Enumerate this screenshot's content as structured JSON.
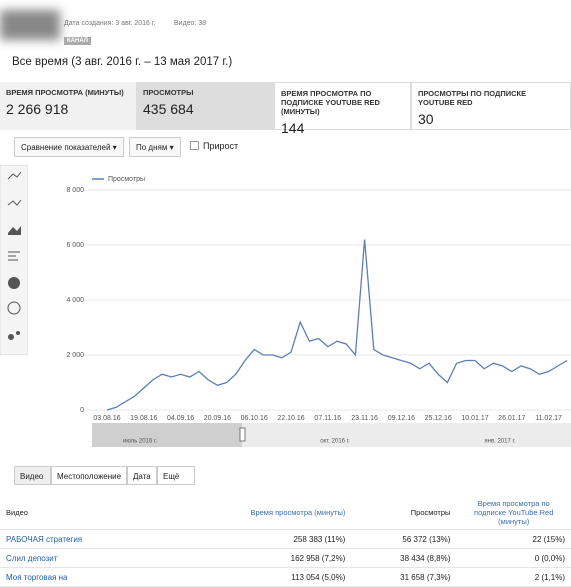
{
  "header": {
    "created": "Дата создания: 3 авг. 2016 г.",
    "videos": "Видео: 38",
    "badge": "КАНАЛ",
    "period": "Все время (3 авг. 2016 г. – 13 мая 2017 г.)"
  },
  "metrics": [
    {
      "label": "ВРЕМЯ ПРОСМОТРА (МИНУТЫ)",
      "value": "2 266 918"
    },
    {
      "label": "ПРОСМОТРЫ",
      "value": "435 684"
    },
    {
      "label": "ВРЕМЯ ПРОСМОТРА ПО ПОДПИСКЕ YOUTUBE RED (МИНУТЫ)",
      "value": "144"
    },
    {
      "label": "ПРОСМОТРЫ ПО ПОДПИСКЕ YOUTUBE RED",
      "value": "30"
    }
  ],
  "controls": {
    "compare": "Сравнение показателей",
    "period": "По дням",
    "growth": "Прирост"
  },
  "chart_data": {
    "type": "line",
    "ylim": [
      0,
      8000
    ],
    "yticks": [
      0,
      {
        "value": 2000,
        "label": "2 000"
      },
      {
        "value": 4000,
        "label": "4 000"
      },
      {
        "value": 6000,
        "label": "6 000"
      },
      {
        "value": 8000,
        "label": "8 000"
      }
    ],
    "grid": true,
    "categories": [
      "03.08.16",
      null,
      null,
      null,
      "19.08.16",
      null,
      null,
      null,
      "04.09.16",
      null,
      null,
      null,
      "20.09.16",
      null,
      null,
      null,
      "06.10.16",
      null,
      null,
      null,
      "22.10.16",
      null,
      null,
      null,
      "07.11.16",
      null,
      null,
      null,
      "23.11.16",
      null,
      null,
      null,
      "09.12.16",
      null,
      null,
      null,
      "25.12.16",
      null,
      null,
      null,
      "10.01.17",
      null,
      null,
      null,
      "26.01.17",
      null,
      null,
      null,
      "11.02.17",
      null,
      null
    ],
    "series": [
      {
        "name": "Просмотры",
        "color": "#5b7fb5",
        "values": [
          0,
          100,
          300,
          500,
          800,
          1100,
          1300,
          1200,
          1300,
          1200,
          1400,
          1100,
          900,
          1000,
          1300,
          1800,
          2200,
          2000,
          2000,
          1900,
          2100,
          3200,
          2500,
          2600,
          2300,
          2500,
          2400,
          2000,
          6200,
          2200,
          2000,
          1900,
          1800,
          1700,
          1500,
          1700,
          1300,
          1000,
          1700,
          1800,
          1800,
          1500,
          1700,
          1600,
          1400,
          1600,
          1500,
          1300,
          1400,
          1600,
          1800
        ]
      }
    ],
    "navigator_labels": [
      "июль 2016 г.",
      "окт. 2016 г.",
      "янв. 2017 г."
    ]
  },
  "tabs": [
    "Видео",
    "Местоположение",
    "Дата",
    "Ещё"
  ],
  "table": {
    "headers": [
      "Видео",
      "Время просмотра (минуты)",
      "Просмотры",
      "Время просмотра по подписке YouTube Red (минуты)"
    ],
    "rows": [
      [
        "РАБОЧАЯ стратегия",
        "258 383 (11%)",
        "56 372 (13%)",
        "22 (15%)"
      ],
      [
        "Слил депозит",
        "162 958 (7,2%)",
        "38 434 (8,8%)",
        "0 (0,0%)"
      ],
      [
        "Моя торговая на",
        "113 054 (5,0%)",
        "31 658 (7,3%)",
        "2 (1,1%)"
      ]
    ]
  }
}
